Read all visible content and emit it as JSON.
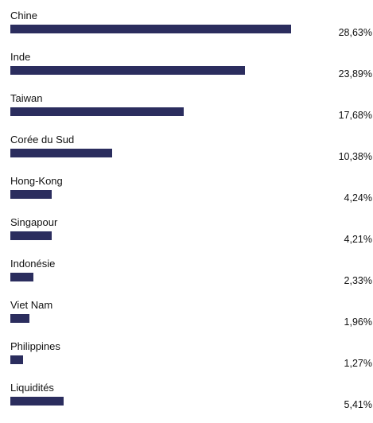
{
  "chart_data": {
    "type": "bar",
    "orientation": "horizontal",
    "categories": [
      "Chine",
      "Inde",
      "Taiwan",
      "Corée du Sud",
      "Hong-Kong",
      "Singapour",
      "Indonésie",
      "Viet Nam",
      "Philippines",
      "Liquidités"
    ],
    "values": [
      28.63,
      23.89,
      17.68,
      10.38,
      4.24,
      4.21,
      2.33,
      1.96,
      1.27,
      5.41
    ],
    "value_labels": [
      "28,63%",
      "23,89%",
      "17,68%",
      "10,38%",
      "4,24%",
      "4,21%",
      "2,33%",
      "1,96%",
      "1,27%",
      "5,41%"
    ],
    "unit": "%",
    "xlim": [
      0,
      28.63
    ],
    "grid": false,
    "legend": "none",
    "bar_color": "#2b2d5e"
  }
}
